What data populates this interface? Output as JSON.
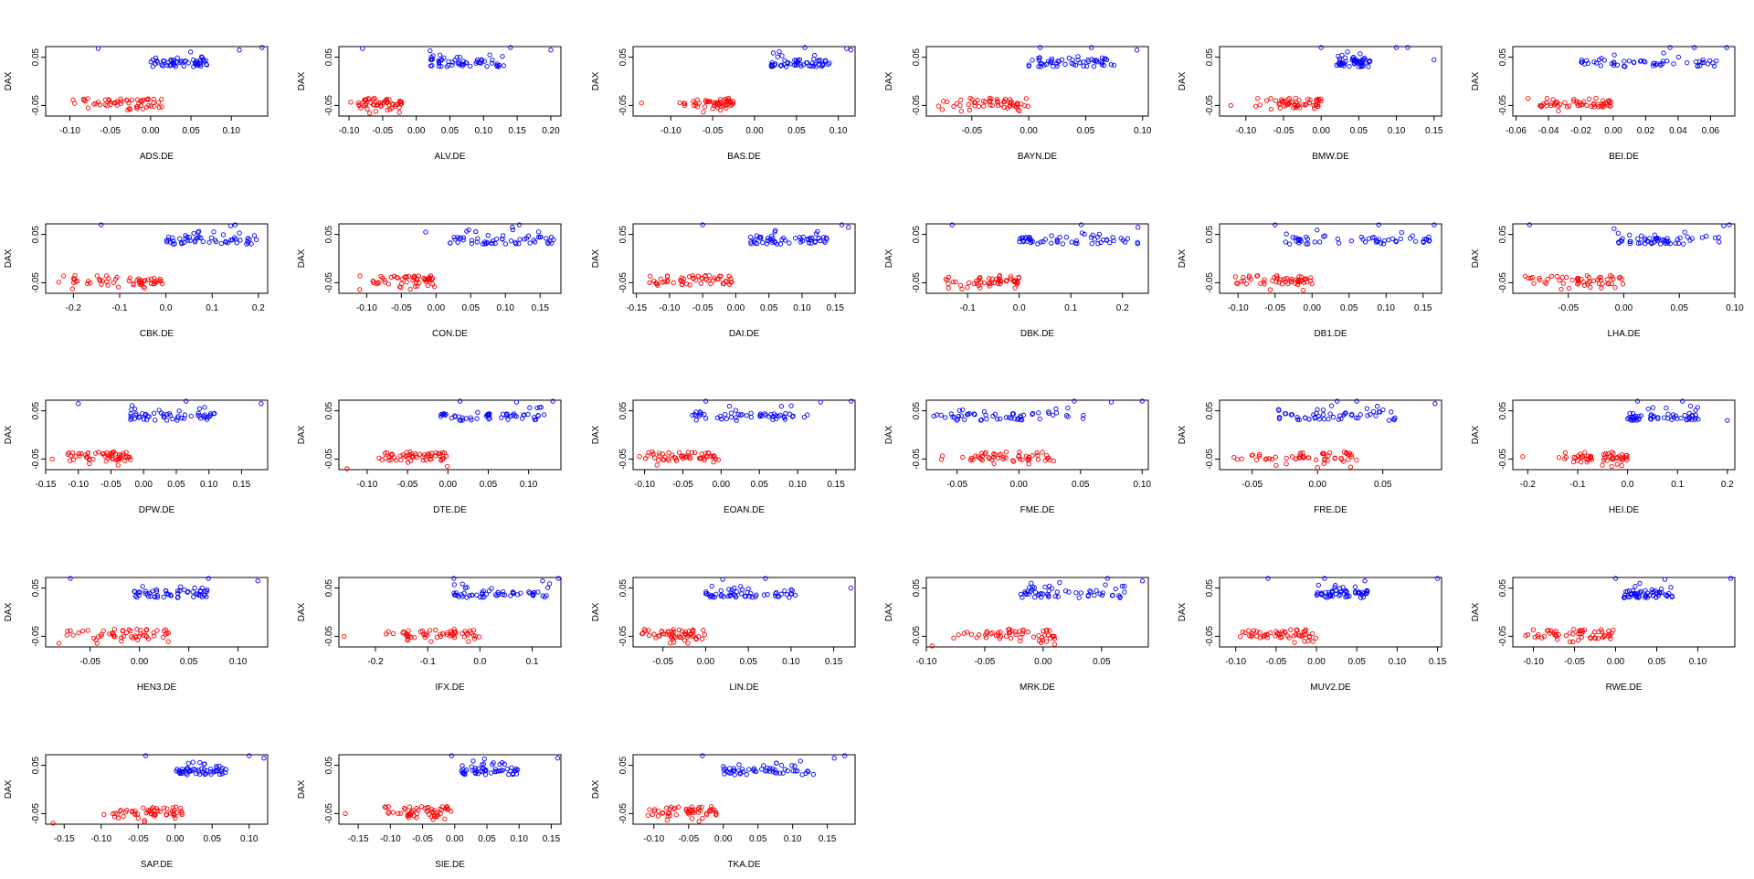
{
  "figure": {
    "y_axis_label": "DAX",
    "y_ticks": [
      0.05,
      -0.05
    ],
    "y_tick_labels": [
      "0.05",
      "-0.05"
    ],
    "ylim": [
      -0.072,
      0.072
    ],
    "colors": {
      "up": "#0000ff",
      "down": "#ff0000",
      "axis": "#000000"
    }
  },
  "chart_data": [
    {
      "type": "scatter",
      "xlabel": "ADS.DE",
      "ylabel": "DAX",
      "xlim": [
        -0.13,
        0.145
      ],
      "xticks": [
        -0.1,
        -0.05,
        0.0,
        0.05,
        0.1
      ],
      "xtick_labels": [
        "-0.10",
        "-0.05",
        "0.00",
        "0.05",
        "0.10"
      ],
      "red_range": [
        -0.1,
        0.015
      ],
      "blue_range": [
        0.0,
        0.07
      ],
      "outliers": [
        [
          -0.065,
          0.068
        ],
        [
          0.11,
          0.065
        ],
        [
          0.138,
          0.07
        ]
      ]
    },
    {
      "type": "scatter",
      "xlabel": "ALV.DE",
      "ylabel": "DAX",
      "xlim": [
        -0.115,
        0.215
      ],
      "xticks": [
        -0.1,
        -0.05,
        0.0,
        0.05,
        0.1,
        0.15,
        0.2
      ],
      "xtick_labels": [
        "-0.10",
        "-0.05",
        "0.00",
        "0.05",
        "0.10",
        "0.15",
        "0.20"
      ],
      "red_range": [
        -0.1,
        -0.02
      ],
      "blue_range": [
        0.02,
        0.13
      ],
      "outliers": [
        [
          -0.08,
          0.068
        ],
        [
          0.14,
          0.07
        ],
        [
          0.2,
          0.065
        ]
      ]
    },
    {
      "type": "scatter",
      "xlabel": "BAS.DE",
      "ylabel": "DAX",
      "xlim": [
        -0.145,
        0.12
      ],
      "xticks": [
        -0.1,
        -0.05,
        0.0,
        0.05,
        0.1
      ],
      "xtick_labels": [
        "-0.10",
        "-0.05",
        "0.00",
        "0.05",
        "0.10"
      ],
      "red_range": [
        -0.09,
        -0.025
      ],
      "blue_range": [
        0.02,
        0.09
      ],
      "outliers": [
        [
          -0.135,
          -0.045
        ],
        [
          0.06,
          0.07
        ],
        [
          0.11,
          0.068
        ],
        [
          0.115,
          0.065
        ]
      ]
    },
    {
      "type": "scatter",
      "xlabel": "BAYN.DE",
      "ylabel": "DAX",
      "xlim": [
        -0.09,
        0.105
      ],
      "xticks": [
        -0.05,
        0.0,
        0.05,
        0.1
      ],
      "xtick_labels": [
        "-0.05",
        "0.00",
        "0.05",
        "0.10"
      ],
      "red_range": [
        -0.08,
        0.0
      ],
      "blue_range": [
        0.0,
        0.075
      ],
      "outliers": [
        [
          0.01,
          0.07
        ],
        [
          0.055,
          0.07
        ],
        [
          0.095,
          0.065
        ]
      ]
    },
    {
      "type": "scatter",
      "xlabel": "BMW.DE",
      "ylabel": "DAX",
      "xlim": [
        -0.135,
        0.16
      ],
      "xticks": [
        -0.1,
        -0.05,
        0.0,
        0.05,
        0.1,
        0.15
      ],
      "xtick_labels": [
        "-0.10",
        "-0.05",
        "0.00",
        "0.05",
        "0.10",
        "0.15"
      ],
      "red_range": [
        -0.09,
        0.0
      ],
      "blue_range": [
        0.02,
        0.065
      ],
      "outliers": [
        [
          -0.12,
          -0.05
        ],
        [
          0.0,
          0.07
        ],
        [
          0.1,
          0.07
        ],
        [
          0.115,
          0.07
        ],
        [
          0.15,
          0.045
        ]
      ]
    },
    {
      "type": "scatter",
      "xlabel": "BEI.DE",
      "ylabel": "DAX",
      "xlim": [
        -0.062,
        0.075
      ],
      "xticks": [
        -0.06,
        -0.04,
        -0.02,
        0.0,
        0.02,
        0.04,
        0.06
      ],
      "xtick_labels": [
        "-0.06",
        "-0.04",
        "-0.02",
        "0.00",
        "0.02",
        "0.04",
        "0.06"
      ],
      "red_range": [
        -0.055,
        0.0
      ],
      "blue_range": [
        -0.02,
        0.07
      ],
      "outliers": [
        [
          0.035,
          0.07
        ],
        [
          0.05,
          0.07
        ],
        [
          0.07,
          0.07
        ]
      ]
    },
    {
      "type": "scatter",
      "xlabel": "CBK.DE",
      "ylabel": "DAX",
      "xlim": [
        -0.26,
        0.22
      ],
      "xticks": [
        -0.2,
        -0.1,
        0.0,
        0.1,
        0.2
      ],
      "xtick_labels": [
        "-0.2",
        "-0.1",
        "0.0",
        "0.1",
        "0.2"
      ],
      "red_range": [
        -0.25,
        0.0
      ],
      "blue_range": [
        0.0,
        0.2
      ],
      "outliers": [
        [
          -0.14,
          0.07
        ],
        [
          0.14,
          0.068
        ],
        [
          0.15,
          0.07
        ]
      ]
    },
    {
      "type": "scatter",
      "xlabel": "CON.DE",
      "ylabel": "DAX",
      "xlim": [
        -0.14,
        0.18
      ],
      "xticks": [
        -0.1,
        -0.05,
        0.0,
        0.05,
        0.1,
        0.15
      ],
      "xtick_labels": [
        "-0.10",
        "-0.05",
        "0.00",
        "0.05",
        "0.10",
        "0.15"
      ],
      "red_range": [
        -0.12,
        0.0
      ],
      "blue_range": [
        0.02,
        0.17
      ],
      "outliers": [
        [
          -0.015,
          0.055
        ],
        [
          0.11,
          0.065
        ],
        [
          0.12,
          0.07
        ]
      ]
    },
    {
      "type": "scatter",
      "xlabel": "DAI.DE",
      "ylabel": "DAX",
      "xlim": [
        -0.155,
        0.18
      ],
      "xticks": [
        -0.15,
        -0.1,
        -0.05,
        0.0,
        0.05,
        0.1,
        0.15
      ],
      "xtick_labels": [
        "-0.15",
        "-0.10",
        "-0.05",
        "0.00",
        "0.05",
        "0.10",
        "0.15"
      ],
      "red_range": [
        -0.14,
        0.0
      ],
      "blue_range": [
        0.02,
        0.14
      ],
      "outliers": [
        [
          -0.05,
          0.07
        ],
        [
          0.16,
          0.07
        ],
        [
          0.17,
          0.065
        ]
      ]
    },
    {
      "type": "scatter",
      "xlabel": "DBK.DE",
      "ylabel": "DAX",
      "xlim": [
        -0.18,
        0.25
      ],
      "xticks": [
        -0.1,
        0.0,
        0.1,
        0.2
      ],
      "xtick_labels": [
        "-0.1",
        "0.0",
        "0.1",
        "0.2"
      ],
      "red_range": [
        -0.16,
        0.0
      ],
      "blue_range": [
        0.0,
        0.23
      ],
      "outliers": [
        [
          -0.13,
          0.07
        ],
        [
          0.12,
          0.07
        ],
        [
          0.23,
          0.065
        ]
      ]
    },
    {
      "type": "scatter",
      "xlabel": "DB1.DE",
      "ylabel": "DAX",
      "xlim": [
        -0.125,
        0.175
      ],
      "xticks": [
        -0.1,
        -0.05,
        0.0,
        0.05,
        0.1,
        0.15
      ],
      "xtick_labels": [
        "-0.10",
        "-0.05",
        "0.00",
        "0.05",
        "0.10",
        "0.15"
      ],
      "red_range": [
        -0.11,
        0.0
      ],
      "blue_range": [
        -0.04,
        0.16
      ],
      "outliers": [
        [
          -0.05,
          0.07
        ],
        [
          0.09,
          0.07
        ],
        [
          0.165,
          0.07
        ]
      ]
    },
    {
      "type": "scatter",
      "xlabel": "LHA.DE",
      "ylabel": "DAX",
      "xlim": [
        -0.1,
        0.1
      ],
      "xticks": [
        -0.05,
        0.0,
        0.05,
        0.1
      ],
      "xtick_labels": [
        "-0.05",
        "0.00",
        "0.05",
        "0.10"
      ],
      "red_range": [
        -0.09,
        0.0
      ],
      "blue_range": [
        -0.01,
        0.09
      ],
      "outliers": [
        [
          -0.085,
          0.07
        ],
        [
          0.09,
          0.068
        ],
        [
          0.095,
          0.07
        ]
      ]
    },
    {
      "type": "scatter",
      "xlabel": "DPW.DE",
      "ylabel": "DAX",
      "xlim": [
        -0.15,
        0.19
      ],
      "xticks": [
        -0.15,
        -0.1,
        -0.05,
        0.0,
        0.05,
        0.1,
        0.15
      ],
      "xtick_labels": [
        "-0.15",
        "-0.10",
        "-0.05",
        "0.00",
        "0.05",
        "0.10",
        "0.15"
      ],
      "red_range": [
        -0.12,
        -0.02
      ],
      "blue_range": [
        -0.02,
        0.11
      ],
      "outliers": [
        [
          -0.14,
          -0.05
        ],
        [
          -0.1,
          0.065
        ],
        [
          0.065,
          0.07
        ],
        [
          0.18,
          0.065
        ]
      ]
    },
    {
      "type": "scatter",
      "xlabel": "DTE.DE",
      "ylabel": "DAX",
      "xlim": [
        -0.135,
        0.14
      ],
      "xticks": [
        -0.1,
        -0.05,
        0.0,
        0.05,
        0.1
      ],
      "xtick_labels": [
        "-0.10",
        "-0.05",
        "0.00",
        "0.05",
        "0.10"
      ],
      "red_range": [
        -0.09,
        0.0
      ],
      "blue_range": [
        -0.01,
        0.12
      ],
      "outliers": [
        [
          -0.125,
          -0.07
        ],
        [
          0.015,
          0.07
        ],
        [
          0.085,
          0.068
        ],
        [
          0.13,
          0.07
        ]
      ]
    },
    {
      "type": "scatter",
      "xlabel": "EOAN.DE",
      "ylabel": "DAX",
      "xlim": [
        -0.115,
        0.175
      ],
      "xticks": [
        -0.1,
        -0.05,
        0.0,
        0.05,
        0.1,
        0.15
      ],
      "xtick_labels": [
        "-0.10",
        "-0.05",
        "0.00",
        "0.05",
        "0.10",
        "0.15"
      ],
      "red_range": [
        -0.11,
        0.0
      ],
      "blue_range": [
        -0.04,
        0.12
      ],
      "outliers": [
        [
          -0.02,
          0.07
        ],
        [
          0.13,
          0.068
        ],
        [
          0.17,
          0.07
        ]
      ]
    },
    {
      "type": "scatter",
      "xlabel": "FME.DE",
      "ylabel": "DAX",
      "xlim": [
        -0.075,
        0.105
      ],
      "xticks": [
        -0.05,
        0.0,
        0.05,
        0.1
      ],
      "xtick_labels": [
        "-0.05",
        "0.00",
        "0.05",
        "0.10"
      ],
      "red_range": [
        -0.07,
        0.03
      ],
      "blue_range": [
        -0.07,
        0.06
      ],
      "outliers": [
        [
          0.045,
          0.07
        ],
        [
          0.075,
          0.068
        ],
        [
          0.1,
          0.07
        ]
      ]
    },
    {
      "type": "scatter",
      "xlabel": "FRE.DE",
      "ylabel": "DAX",
      "xlim": [
        -0.075,
        0.095
      ],
      "xticks": [
        -0.05,
        0.0,
        0.05
      ],
      "xtick_labels": [
        "-0.05",
        "0.00",
        "0.05"
      ],
      "red_range": [
        -0.07,
        0.03
      ],
      "blue_range": [
        -0.03,
        0.06
      ],
      "outliers": [
        [
          0.015,
          0.07
        ],
        [
          0.03,
          0.07
        ],
        [
          0.09,
          0.065
        ]
      ]
    },
    {
      "type": "scatter",
      "xlabel": "HEI.DE",
      "ylabel": "DAX",
      "xlim": [
        -0.23,
        0.215
      ],
      "xticks": [
        -0.2,
        -0.1,
        0.0,
        0.1,
        0.2
      ],
      "xtick_labels": [
        "-0.2",
        "-0.1",
        "0.0",
        "0.1",
        "0.2"
      ],
      "red_range": [
        -0.15,
        0.0
      ],
      "blue_range": [
        0.0,
        0.15
      ],
      "outliers": [
        [
          -0.21,
          -0.045
        ],
        [
          0.02,
          0.07
        ],
        [
          0.11,
          0.07
        ],
        [
          0.2,
          0.03
        ]
      ]
    },
    {
      "type": "scatter",
      "xlabel": "HEN3.DE",
      "ylabel": "DAX",
      "xlim": [
        -0.095,
        0.13
      ],
      "xticks": [
        -0.05,
        0.0,
        0.05,
        0.1
      ],
      "xtick_labels": [
        "-0.05",
        "0.00",
        "0.05",
        "0.10"
      ],
      "red_range": [
        -0.09,
        0.03
      ],
      "blue_range": [
        -0.01,
        0.07
      ],
      "outliers": [
        [
          -0.07,
          0.07
        ],
        [
          0.07,
          0.07
        ],
        [
          0.12,
          0.065
        ]
      ]
    },
    {
      "type": "scatter",
      "xlabel": "IFX.DE",
      "ylabel": "DAX",
      "xlim": [
        -0.27,
        0.155
      ],
      "xticks": [
        -0.2,
        -0.1,
        0.0,
        0.1
      ],
      "xtick_labels": [
        "-0.2",
        "-0.1",
        "0.0",
        "0.1"
      ],
      "red_range": [
        -0.18,
        0.0
      ],
      "blue_range": [
        -0.05,
        0.14
      ],
      "outliers": [
        [
          -0.26,
          -0.05
        ],
        [
          -0.05,
          0.07
        ],
        [
          0.12,
          0.065
        ],
        [
          0.15,
          0.07
        ]
      ]
    },
    {
      "type": "scatter",
      "xlabel": "LIN.DE",
      "ylabel": "DAX",
      "xlim": [
        -0.085,
        0.175
      ],
      "xticks": [
        -0.05,
        0.0,
        0.05,
        0.1,
        0.15
      ],
      "xtick_labels": [
        "-0.05",
        "0.00",
        "0.05",
        "0.10",
        "0.15"
      ],
      "red_range": [
        -0.08,
        0.0
      ],
      "blue_range": [
        0.0,
        0.11
      ],
      "outliers": [
        [
          0.02,
          0.068
        ],
        [
          0.07,
          0.07
        ],
        [
          0.17,
          0.05
        ]
      ]
    },
    {
      "type": "scatter",
      "xlabel": "MRK.DE",
      "ylabel": "DAX",
      "xlim": [
        -0.1,
        0.09
      ],
      "xticks": [
        -0.1,
        -0.05,
        0.0,
        0.05
      ],
      "xtick_labels": [
        "-0.10",
        "-0.05",
        "0.00",
        "0.05"
      ],
      "red_range": [
        -0.08,
        0.01
      ],
      "blue_range": [
        -0.02,
        0.07
      ],
      "outliers": [
        [
          -0.095,
          -0.07
        ],
        [
          0.055,
          0.07
        ],
        [
          0.085,
          0.065
        ]
      ]
    },
    {
      "type": "scatter",
      "xlabel": "MUV2.DE",
      "ylabel": "DAX",
      "xlim": [
        -0.12,
        0.155
      ],
      "xticks": [
        -0.1,
        -0.05,
        0.0,
        0.05,
        0.1,
        0.15
      ],
      "xtick_labels": [
        "-0.10",
        "-0.05",
        "0.00",
        "0.05",
        "0.10",
        "0.15"
      ],
      "red_range": [
        -0.1,
        0.0
      ],
      "blue_range": [
        0.0,
        0.07
      ],
      "outliers": [
        [
          -0.06,
          0.07
        ],
        [
          0.01,
          0.07
        ],
        [
          0.06,
          0.065
        ],
        [
          0.15,
          0.07
        ]
      ]
    },
    {
      "type": "scatter",
      "xlabel": "RWE.DE",
      "ylabel": "DAX",
      "xlim": [
        -0.125,
        0.145
      ],
      "xticks": [
        -0.1,
        -0.05,
        0.0,
        0.05,
        0.1
      ],
      "xtick_labels": [
        "-0.10",
        "-0.05",
        "0.00",
        "0.05",
        "0.10"
      ],
      "red_range": [
        -0.11,
        0.0
      ],
      "blue_range": [
        0.01,
        0.07
      ],
      "outliers": [
        [
          0.0,
          0.07
        ],
        [
          0.06,
          0.068
        ],
        [
          0.14,
          0.07
        ]
      ]
    },
    {
      "type": "scatter",
      "xlabel": "SAP.DE",
      "ylabel": "DAX",
      "xlim": [
        -0.175,
        0.125
      ],
      "xticks": [
        -0.15,
        -0.1,
        -0.05,
        0.0,
        0.05,
        0.1
      ],
      "xtick_labels": [
        "-0.15",
        "-0.10",
        "-0.05",
        "0.00",
        "0.05",
        "0.10"
      ],
      "red_range": [
        -0.1,
        0.01
      ],
      "blue_range": [
        0.0,
        0.07
      ],
      "outliers": [
        [
          -0.165,
          -0.07
        ],
        [
          -0.04,
          0.07
        ],
        [
          0.1,
          0.07
        ],
        [
          0.12,
          0.065
        ]
      ]
    },
    {
      "type": "scatter",
      "xlabel": "SIE.DE",
      "ylabel": "DAX",
      "xlim": [
        -0.18,
        0.165
      ],
      "xticks": [
        -0.15,
        -0.1,
        -0.05,
        0.0,
        0.05,
        0.1,
        0.15
      ],
      "xtick_labels": [
        "-0.15",
        "-0.10",
        "-0.05",
        "0.00",
        "0.05",
        "0.10",
        "0.15"
      ],
      "red_range": [
        -0.12,
        0.0
      ],
      "blue_range": [
        0.01,
        0.1
      ],
      "outliers": [
        [
          -0.17,
          -0.05
        ],
        [
          -0.005,
          0.07
        ],
        [
          0.16,
          0.065
        ]
      ]
    },
    {
      "type": "scatter",
      "xlabel": "TKA.DE",
      "ylabel": "DAX",
      "xlim": [
        -0.13,
        0.19
      ],
      "xticks": [
        -0.1,
        -0.05,
        0.0,
        0.05,
        0.1,
        0.15
      ],
      "xtick_labels": [
        "-0.10",
        "-0.05",
        "0.00",
        "0.05",
        "0.10",
        "0.15"
      ],
      "red_range": [
        -0.12,
        -0.01
      ],
      "blue_range": [
        0.0,
        0.13
      ],
      "outliers": [
        [
          -0.03,
          0.07
        ],
        [
          0.16,
          0.065
        ],
        [
          0.175,
          0.07
        ]
      ]
    }
  ]
}
